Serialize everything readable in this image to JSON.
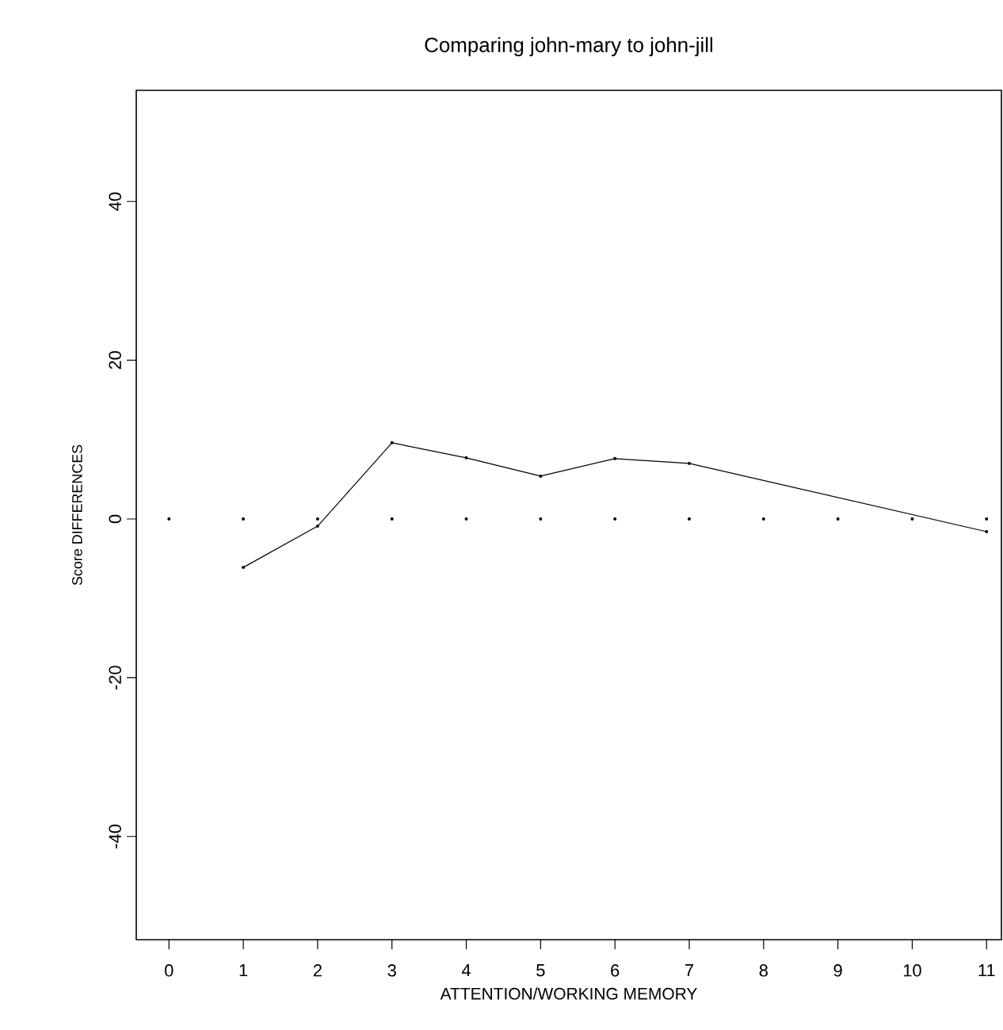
{
  "chart_data": {
    "type": "line",
    "title": "Comparing john-mary  to  john-jill",
    "xlabel": "ATTENTION/WORKING MEMORY",
    "ylabel": "Score DIFFERENCES",
    "xlim": [
      -0.44,
      11.2
    ],
    "xticks": [
      0,
      1,
      2,
      3,
      4,
      5,
      6,
      7,
      8,
      9,
      10,
      11
    ],
    "ylim": [
      -53,
      54
    ],
    "yticks": [
      -40,
      -20,
      0,
      20,
      40
    ],
    "grid": false,
    "marker": "circle",
    "line_style": "solid",
    "series": [
      {
        "type": "scatter",
        "color": "#000000",
        "x": [
          0,
          1,
          2,
          3,
          4,
          5,
          6,
          7,
          8,
          9,
          10,
          11
        ],
        "values": [
          0,
          0,
          0,
          0,
          0,
          0,
          0,
          0,
          0,
          0,
          0,
          0
        ]
      },
      {
        "color": "#000000",
        "x": [
          1,
          2,
          3,
          4,
          5,
          6,
          7,
          11
        ],
        "values": [
          -6.1,
          -0.9,
          9.6,
          7.7,
          5.4,
          7.6,
          7.0,
          -1.6
        ]
      }
    ]
  }
}
